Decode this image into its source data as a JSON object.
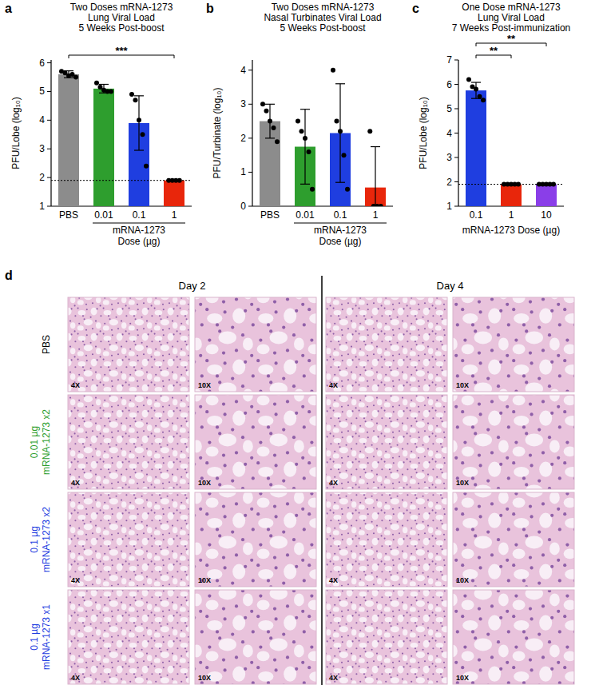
{
  "chart_data": [
    {
      "type": "bar",
      "panel": "a",
      "title": [
        "Two Doses mRNA-1273",
        "Lung Viral Load",
        "5 Weeks Post-boost"
      ],
      "y_label": "PFU/Lobe (log₁₀)",
      "x_label": [
        "mRNA-1273",
        "Dose (µg)"
      ],
      "x_label_categories": [
        "0.01",
        "0.1",
        "1"
      ],
      "categories": [
        "PBS",
        "0.01",
        "0.1",
        "1"
      ],
      "values": [
        5.6,
        5.1,
        3.9,
        1.9
      ],
      "errors": [
        0.12,
        0.15,
        0.95,
        0
      ],
      "points": [
        [
          5.7,
          5.65,
          5.55,
          5.6,
          5.5
        ],
        [
          5.3,
          5.15,
          5.05,
          5.0,
          5.0
        ],
        [
          4.9,
          4.7,
          4.0,
          3.5,
          2.4
        ],
        [
          1.9,
          1.9,
          1.9,
          1.9
        ]
      ],
      "colors": [
        "#8c8c8c",
        "#2e9e2e",
        "#1f3ee0",
        "#e8260b"
      ],
      "ylim": [
        1,
        6.1
      ],
      "yticks": [
        1,
        2,
        3,
        4,
        5,
        6
      ],
      "limit_of_detection": 1.9,
      "significance": [
        {
          "label": "***",
          "from": "PBS",
          "to": "1"
        }
      ]
    },
    {
      "type": "bar",
      "panel": "b",
      "title": [
        "Two Doses mRNA-1273",
        "Nasal Turbinates Viral Load",
        "5 Weeks Post-boost"
      ],
      "y_label": "PFU/Turbinate (log₁₀)",
      "x_label": [
        "mRNA-1273",
        "Dose (µg)"
      ],
      "x_label_categories": [
        "0.01",
        "0.1",
        "1"
      ],
      "categories": [
        "PBS",
        "0.01",
        "0.1",
        "1"
      ],
      "values": [
        2.5,
        1.75,
        2.15,
        0.55
      ],
      "errors": [
        0.5,
        1.1,
        1.45,
        1.2
      ],
      "points": [
        [
          3.0,
          2.8,
          2.5,
          2.3,
          1.9
        ],
        [
          2.5,
          2.2,
          2.0,
          1.6,
          0.5
        ],
        [
          4.0,
          2.5,
          2.2,
          1.5,
          0.5
        ],
        [
          2.2,
          0,
          0,
          0
        ]
      ],
      "colors": [
        "#8c8c8c",
        "#2e9e2e",
        "#1f3ee0",
        "#e8260b"
      ],
      "ylim": [
        0,
        4.3
      ],
      "yticks": [
        0,
        1,
        2,
        3,
        4
      ],
      "significance": []
    },
    {
      "type": "bar",
      "panel": "c",
      "title": [
        "One Dose mRNA-1273",
        "Lung Viral Load",
        "7 Weeks Post-immunization"
      ],
      "y_label": "PFU/Lobe (log₁₀)",
      "x_label": [
        "mRNA-1273 Dose (µg)"
      ],
      "x_label_categories": [
        "0.1",
        "1",
        "10"
      ],
      "categories": [
        "0.1",
        "1",
        "10"
      ],
      "values": [
        5.75,
        1.9,
        1.9
      ],
      "errors": [
        0.33,
        0,
        0
      ],
      "points": [
        [
          6.2,
          5.9,
          5.8,
          5.5,
          5.35
        ],
        [
          1.9,
          1.9,
          1.9,
          1.9,
          1.9
        ],
        [
          1.9,
          1.9,
          1.9,
          1.9,
          1.9
        ]
      ],
      "colors": [
        "#1f3ee0",
        "#e8260b",
        "#8a3ee8"
      ],
      "ylim": [
        1,
        7
      ],
      "yticks": [
        1,
        2,
        3,
        4,
        5,
        6,
        7
      ],
      "limit_of_detection": 1.9,
      "significance": [
        {
          "label": "**",
          "from": "0.1",
          "to": "1"
        },
        {
          "label": "**",
          "from": "0.1",
          "to": "10"
        }
      ]
    }
  ],
  "histology": {
    "panel": "d",
    "columns": [
      "Day 2",
      "Day 4"
    ],
    "magnifications": [
      "4X",
      "10X",
      "4X",
      "10X"
    ],
    "rows": [
      {
        "lines": [
          "PBS"
        ],
        "color": "#000000"
      },
      {
        "lines": [
          "0.01 µg",
          "mRNA-1273 x2"
        ],
        "color": "#2e9e2e"
      },
      {
        "lines": [
          "0.1 µg",
          "mRNA-1273 x2"
        ],
        "color": "#1f3ee0"
      },
      {
        "lines": [
          "0.1 µg",
          "mRNA-1273 x1"
        ],
        "color": "#1f3ee0"
      }
    ]
  }
}
